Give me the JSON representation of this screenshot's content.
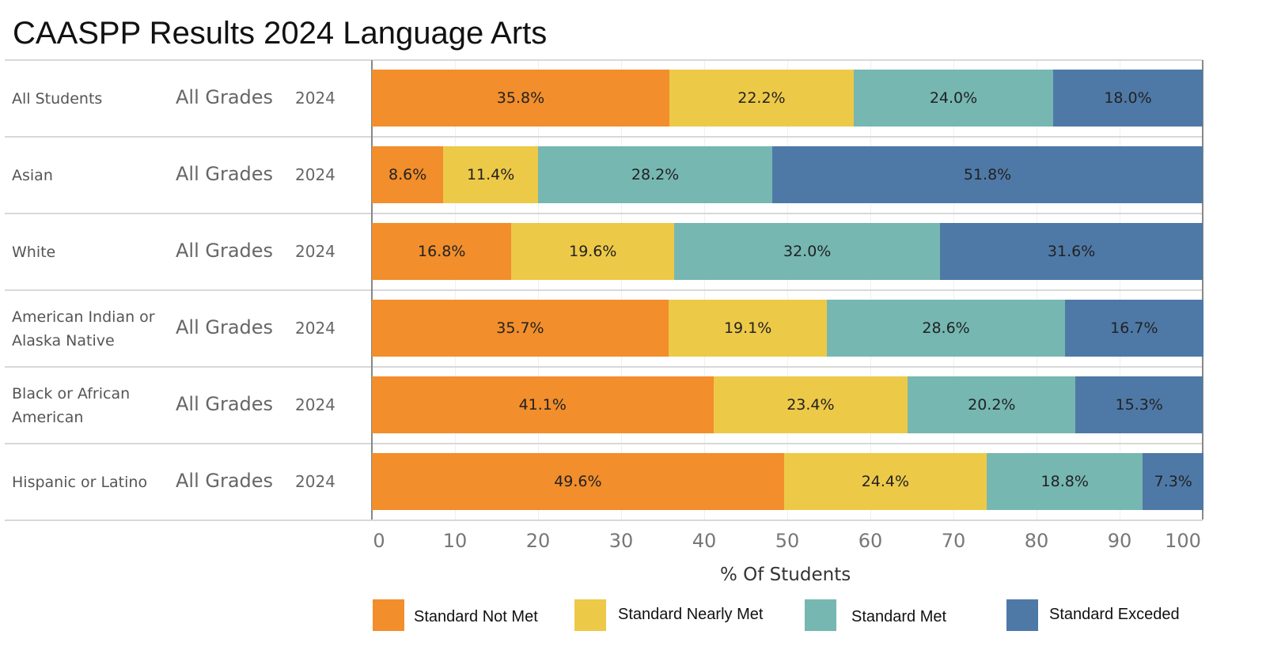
{
  "chart_data": {
    "type": "bar",
    "orientation": "horizontal",
    "stacked": true,
    "title": "CAASPP Results 2024 Language Arts",
    "xlabel": "% Of Students",
    "xlim": [
      0,
      100
    ],
    "xticks": [
      "0",
      "10",
      "20",
      "30",
      "40",
      "50",
      "60",
      "70",
      "80",
      "90",
      "100"
    ],
    "rows": [
      {
        "group": "All Students",
        "grade": "All Grades",
        "year": "2024"
      },
      {
        "group": "Asian",
        "grade": "All Grades",
        "year": "2024"
      },
      {
        "group": "White",
        "grade": "All Grades",
        "year": "2024"
      },
      {
        "group": "American Indian or Alaska Native",
        "grade": "All Grades",
        "year": "2024"
      },
      {
        "group": "Black or African American",
        "grade": "All Grades",
        "year": "2024"
      },
      {
        "group": "Hispanic or Latino",
        "grade": "All Grades",
        "year": "2024"
      }
    ],
    "series": [
      {
        "name": "Standard Not Met",
        "color": "#f28e2b",
        "values": [
          35.8,
          8.6,
          16.8,
          35.7,
          41.1,
          49.6
        ]
      },
      {
        "name": "Standard Nearly Met",
        "color": "#edc948",
        "values": [
          22.2,
          11.4,
          19.6,
          19.1,
          23.4,
          24.4
        ]
      },
      {
        "name": "Standard Met",
        "color": "#76b7b2",
        "values": [
          24.0,
          28.2,
          32.0,
          28.6,
          20.2,
          18.8
        ]
      },
      {
        "name": "Standard Exceded",
        "color": "#4e79a7",
        "values": [
          18.0,
          51.8,
          31.6,
          16.7,
          15.3,
          7.3
        ]
      }
    ],
    "legend": "bottom"
  }
}
